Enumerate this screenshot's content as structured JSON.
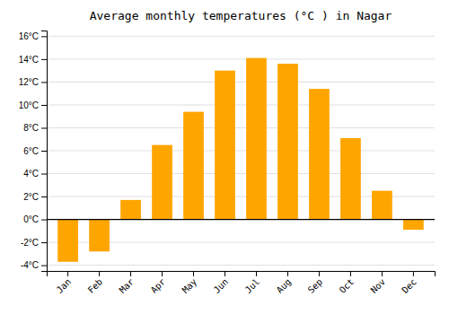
{
  "chart_data": {
    "type": "bar",
    "title": "Average monthly temperatures (°C ) in Nagar",
    "categories": [
      "Jan",
      "Feb",
      "Mar",
      "Apr",
      "May",
      "Jun",
      "Jul",
      "Aug",
      "Sep",
      "Oct",
      "Nov",
      "Dec"
    ],
    "values": [
      -3.7,
      -2.8,
      1.7,
      6.5,
      9.4,
      13.0,
      14.1,
      13.6,
      11.4,
      7.1,
      2.5,
      -0.9
    ],
    "color": "#FFA500",
    "ylim": [
      -4.5,
      16.5
    ],
    "yticks": [
      {
        "value": -4,
        "label": "-4°C"
      },
      {
        "value": -2,
        "label": "-2°C"
      },
      {
        "value": 0,
        "label": "0°C"
      },
      {
        "value": 2,
        "label": "2°C"
      },
      {
        "value": 4,
        "label": "4°C"
      },
      {
        "value": 6,
        "label": "6°C"
      },
      {
        "value": 8,
        "label": "8°C"
      },
      {
        "value": 10,
        "label": "10°C"
      },
      {
        "value": 12,
        "label": "12°C"
      },
      {
        "value": 14,
        "label": "14°C"
      },
      {
        "value": 16,
        "label": "16°C"
      }
    ],
    "grid": true
  }
}
